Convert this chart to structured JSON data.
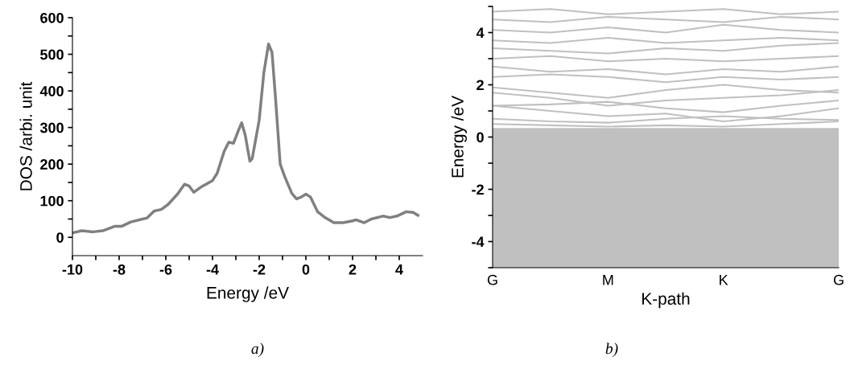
{
  "chart_data": [
    {
      "type": "line",
      "xlabel": "Energy /eV",
      "ylabel": "DOS /arbi. unit",
      "annotations": [
        "a)"
      ],
      "grid": false,
      "legend": false,
      "marker": "none",
      "line_style": "solid",
      "xlim": [
        -10,
        5
      ],
      "xticks": [
        -10,
        {
          "value": -9,
          "label": null
        },
        -8,
        {
          "value": -7,
          "label": null
        },
        -6,
        {
          "value": -5,
          "label": null
        },
        -4,
        {
          "value": -3,
          "label": null
        },
        -2,
        {
          "value": -1,
          "label": null
        },
        0,
        {
          "value": 1,
          "label": null
        },
        2,
        {
          "value": 3,
          "label": null
        },
        4
      ],
      "ylim": [
        -50,
        600
      ],
      "yticks": [
        0,
        {
          "value": 50,
          "label": null
        },
        100,
        {
          "value": 150,
          "label": null
        },
        200,
        {
          "value": 250,
          "label": null
        },
        300,
        {
          "value": 350,
          "label": null
        },
        400,
        {
          "value": 450,
          "label": null
        },
        500,
        {
          "value": 550,
          "label": null
        },
        600
      ],
      "series": [
        {
          "color": "#808080",
          "x": [
            -10,
            -9.6,
            -9.1,
            -8.7,
            -8.2,
            -7.9,
            -7.5,
            -7.0,
            -6.8,
            -6.5,
            -6.2,
            -5.9,
            -5.5,
            -5.2,
            -5.0,
            -4.8,
            -4.5,
            -4.0,
            -3.8,
            -3.5,
            -3.3,
            -3.1,
            -2.9,
            -2.75,
            -2.6,
            -2.4,
            -2.3,
            -2.0,
            -1.8,
            -1.6,
            -1.45,
            -1.3,
            -1.1,
            -0.9,
            -0.6,
            -0.4,
            -0.2,
            0.0,
            0.2,
            0.5,
            0.8,
            1.2,
            1.6,
            2.0,
            2.15,
            2.5,
            2.8,
            3.3,
            3.6,
            3.9,
            4.3,
            4.6,
            4.8
          ],
          "values": [
            12,
            18,
            15,
            18,
            30,
            30,
            42,
            50,
            53,
            72,
            76,
            90,
            118,
            145,
            140,
            123,
            137,
            155,
            175,
            235,
            260,
            257,
            290,
            313,
            280,
            208,
            215,
            320,
            450,
            528,
            505,
            380,
            200,
            165,
            120,
            105,
            110,
            118,
            110,
            70,
            55,
            40,
            40,
            45,
            48,
            40,
            50,
            58,
            54,
            58,
            70,
            68,
            60
          ]
        }
      ]
    },
    {
      "type": "line",
      "xlabel": "K-path",
      "ylabel": "Energy /eV",
      "annotations": [
        "b)"
      ],
      "grid": false,
      "legend": false,
      "marker": "none",
      "line_style": "solid",
      "categories": [
        "G",
        null,
        "M",
        null,
        "K",
        null,
        "G"
      ],
      "ylim": [
        -5,
        5
      ],
      "yticks": [
        {
          "value": -5,
          "label": null
        },
        -4,
        {
          "value": -3,
          "label": null
        },
        -2,
        {
          "value": -1,
          "label": null
        },
        0,
        {
          "value": 1,
          "label": null
        },
        2,
        {
          "value": 3,
          "label": null
        },
        4,
        {
          "value": 5,
          "label": null
        }
      ],
      "bands": [
        {
          "axis": "y",
          "from": -5,
          "to": 0.35,
          "color": "#c0c0c0"
        }
      ],
      "series": [
        {
          "color": "#c0c0c0",
          "values": [
            0.5,
            0.45,
            0.4,
            0.45,
            0.4,
            0.5,
            0.6
          ]
        },
        {
          "color": "#c0c0c0",
          "values": [
            0.7,
            0.6,
            0.55,
            0.7,
            0.8,
            0.7,
            0.65
          ]
        },
        {
          "color": "#c0c0c0",
          "values": [
            1.2,
            1.0,
            0.8,
            0.9,
            0.6,
            0.8,
            1.1
          ]
        },
        {
          "color": "#c0c0c0",
          "values": [
            1.2,
            1.25,
            1.35,
            1.1,
            0.95,
            1.2,
            1.4
          ]
        },
        {
          "color": "#c0c0c0",
          "values": [
            1.7,
            1.5,
            1.2,
            1.4,
            1.5,
            1.6,
            1.8
          ]
        },
        {
          "color": "#c0c0c0",
          "values": [
            1.9,
            1.7,
            1.5,
            1.8,
            2.0,
            1.8,
            1.7
          ]
        },
        {
          "color": "#c0c0c0",
          "values": [
            2.3,
            2.4,
            2.3,
            2.1,
            2.3,
            2.2,
            2.3
          ]
        },
        {
          "color": "#c0c0c0",
          "values": [
            2.7,
            2.5,
            2.6,
            2.4,
            2.6,
            2.5,
            2.7
          ]
        },
        {
          "color": "#c0c0c0",
          "values": [
            3.0,
            3.1,
            2.9,
            3.0,
            2.9,
            3.0,
            3.1
          ]
        },
        {
          "color": "#c0c0c0",
          "values": [
            3.4,
            3.3,
            3.2,
            3.4,
            3.3,
            3.5,
            3.6
          ]
        },
        {
          "color": "#c0c0c0",
          "values": [
            3.7,
            3.6,
            3.8,
            3.6,
            3.7,
            3.8,
            3.7
          ]
        },
        {
          "color": "#c0c0c0",
          "values": [
            4.1,
            4.0,
            4.2,
            4.0,
            4.3,
            4.1,
            4.0
          ]
        },
        {
          "color": "#c0c0c0",
          "values": [
            4.5,
            4.4,
            4.6,
            4.5,
            4.4,
            4.6,
            4.5
          ]
        },
        {
          "color": "#c0c0c0",
          "values": [
            4.8,
            4.9,
            4.7,
            4.8,
            4.9,
            4.7,
            4.8
          ]
        }
      ]
    }
  ]
}
